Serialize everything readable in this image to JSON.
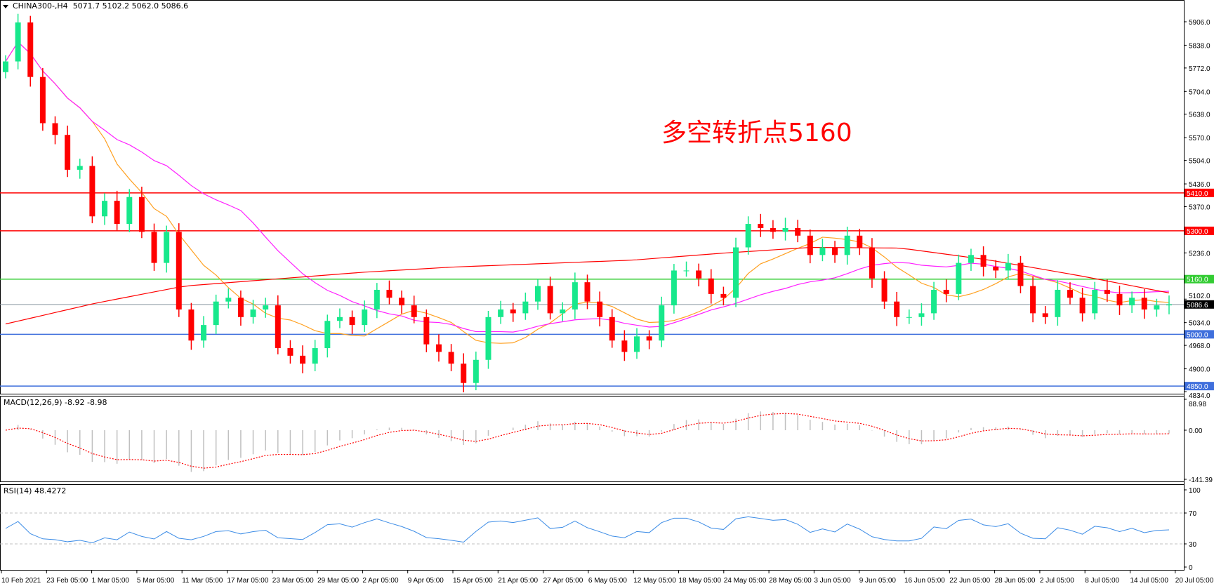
{
  "header": {
    "symbol": "CHINA300-,H4",
    "ohlc": "5071.7 5102.2 5062.0 5086.6"
  },
  "annotation": "多空转折点5160",
  "colors": {
    "bull": "#17e88c",
    "bear": "#ff0000",
    "ma_fast": "#ffa020",
    "ma_mid": "#ff20ff",
    "ma_slow": "#ff0000",
    "macd_hist": "#c0c0c0",
    "macd_signal": "#ff0000",
    "rsi": "#3c8ce6"
  },
  "chart_data": [
    {
      "type": "candlestick",
      "title": "CHINA300-,H4",
      "ylim": [
        4834,
        5940
      ],
      "y_ticks": [
        "5906.0",
        "5838.0",
        "5772.0",
        "5704.0",
        "5638.0",
        "5570.0",
        "5504.0",
        "5436.0",
        "5370.0",
        "5236.0",
        "5102.0",
        "5034.0",
        "4968.0",
        "4900.0",
        "4834.0"
      ],
      "x_ticks": [
        "10 Feb 2021",
        "23 Feb 05:00",
        "1 Mar 05:00",
        "5 Mar 05:00",
        "11 Mar 05:00",
        "17 Mar 05:00",
        "23 Mar 05:00",
        "29 Mar 05:00",
        "2 Apr 05:00",
        "9 Apr 05:00",
        "15 Apr 05:00",
        "21 Apr 05:00",
        "27 Apr 05:00",
        "6 May 05:00",
        "12 May 05:00",
        "18 May 05:00",
        "24 May 05:00",
        "28 May 05:00",
        "3 Jun 05:00",
        "9 Jun 05:00",
        "16 Jun 05:00",
        "22 Jun 05:00",
        "28 Jun 05:00",
        "2 Jul 05:00",
        "8 Jul 05:00",
        "14 Jul 05:00",
        "20 Jul 05:00"
      ],
      "first_open": 5760,
      "closes": [
        5791,
        5904,
        5746,
        5612,
        5578,
        5477,
        5488,
        5342,
        5387,
        5320,
        5398,
        5297,
        5207,
        5297,
        5072,
        4982,
        5027,
        5095,
        5106,
        5050,
        5072,
        5084,
        4960,
        4938,
        4915,
        4960,
        5039,
        5050,
        5027,
        5072,
        5129,
        5106,
        5084,
        5050,
        4971,
        4949,
        4915,
        4859,
        4926,
        5050,
        5072,
        5061,
        5095,
        5140,
        5061,
        5072,
        5151,
        5095,
        5050,
        4982,
        4949,
        4994,
        4982,
        5084,
        5185,
        5185,
        5162,
        5117,
        5106,
        5252,
        5320,
        5308,
        5297,
        5308,
        5286,
        5230,
        5252,
        5230,
        5286,
        5252,
        5162,
        5095,
        5050,
        5050,
        5061,
        5129,
        5117,
        5207,
        5230,
        5196,
        5185,
        5207,
        5140,
        5061,
        5050,
        5129,
        5106,
        5061,
        5129,
        5117,
        5084,
        5106,
        5072,
        5084,
        5086.6
      ],
      "ma_slow": [
        5030,
        5090,
        5140,
        5160,
        5180,
        5195,
        5205,
        5215,
        5235,
        5252,
        5250,
        5215,
        5170,
        5120
      ],
      "levels": [
        {
          "value": "5410.0",
          "color": "#ff0000"
        },
        {
          "value": "5300.0",
          "color": "#ff0000"
        },
        {
          "value": "5160.0",
          "color": "#33cc33"
        },
        {
          "value": "5086.6",
          "color": "#000000",
          "line": "#8a98a0"
        },
        {
          "value": "5000.0",
          "color": "#3f6fdc"
        },
        {
          "value": "4850.0",
          "color": "#3f6fdc"
        }
      ]
    },
    {
      "type": "bar+line",
      "label": "MACD(12,26,9) -8.92 -8.98",
      "ylim": [
        -141.39,
        88.98
      ],
      "y_ticks": [
        "88.98",
        "0.00",
        "-141.39"
      ]
    },
    {
      "type": "line",
      "label": "RSI(14) 48.4272",
      "ylim": [
        0,
        100
      ],
      "y_ticks": [
        "100",
        "70",
        "30",
        "0"
      ],
      "levels": [
        70,
        30
      ]
    }
  ]
}
